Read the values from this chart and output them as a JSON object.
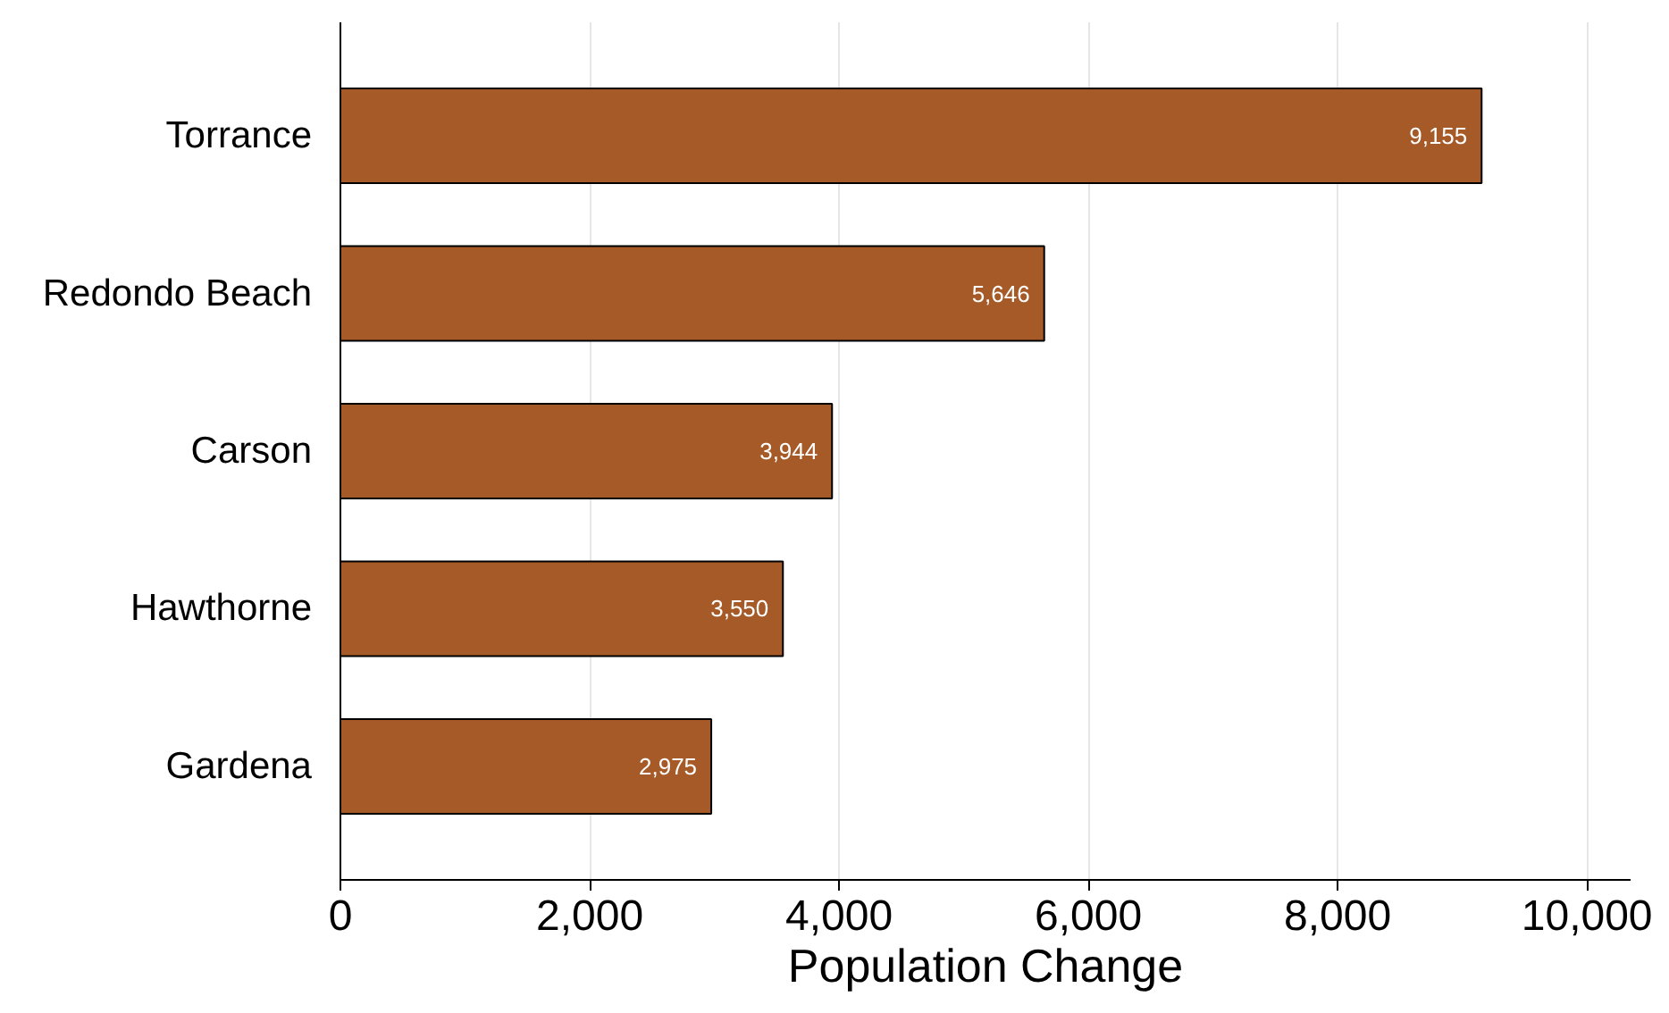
{
  "chart_data": {
    "type": "bar",
    "orientation": "horizontal",
    "categories": [
      "Torrance",
      "Redondo Beach",
      "Carson",
      "Hawthorne",
      "Gardena"
    ],
    "values": [
      9155,
      5646,
      3944,
      3550,
      2975
    ],
    "value_labels": [
      "9,155",
      "5,646",
      "3,944",
      "3,550",
      "2,975"
    ],
    "color": "#a55a28",
    "xlabel": "Population Change",
    "xlim": [
      0,
      10350
    ],
    "xticks": [
      {
        "value": 0,
        "label": "0"
      },
      {
        "value": 2000,
        "label": "2,000"
      },
      {
        "value": 4000,
        "label": "4,000"
      },
      {
        "value": 6000,
        "label": "6,000"
      },
      {
        "value": 8000,
        "label": "8,000"
      },
      {
        "value": 10000,
        "label": "10,000"
      }
    ],
    "grid": "x"
  }
}
